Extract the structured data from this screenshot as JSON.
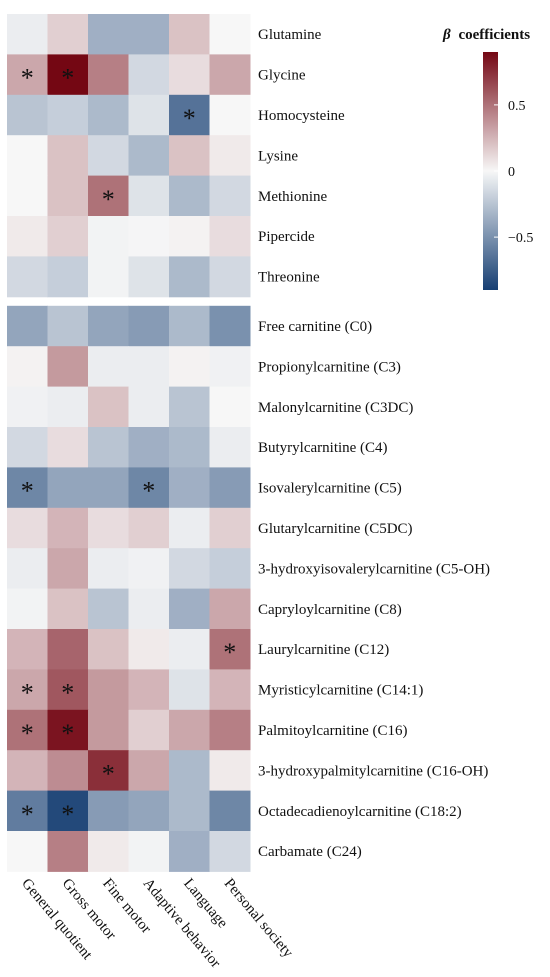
{
  "chart_data": {
    "type": "heatmap",
    "columns": [
      "General quotient",
      "Gross motor",
      "Fine motor",
      "Adaptive behavior",
      "Language",
      "Personal society"
    ],
    "rows": [
      "Glutamine",
      "Glycine",
      "Homocysteine",
      "Lysine",
      "Methionine",
      "Pipercide",
      "Threonine",
      "Free carnitine (C0)",
      "Propionylcarnitine (C3)",
      "Malonylcarnitine (C3DC)",
      "Butyrylcarnitine (C4)",
      "Isovalerylcarnitine (C5)",
      "Glutarylcarnitine (C5DC)",
      "3-hydroxyisovalerylcarnitine (C5-OH)",
      "Capryloylcarnitine (C8)",
      "Laurylcarnitine (C12)",
      "Myristicylcarnitine (C14:1)",
      "Palmitoylcarnitine (C16)",
      "3-hydroxypalmitylcarnitine (C16-OH)",
      "Octadecadienoylcarnitine (C18:2)",
      "Carbamate (C24)"
    ],
    "group_sizes": [
      7,
      14
    ],
    "values": [
      [
        -0.05,
        0.15,
        -0.35,
        -0.35,
        0.2,
        0.0
      ],
      [
        0.3,
        0.9,
        0.45,
        -0.15,
        0.1,
        0.3
      ],
      [
        -0.25,
        -0.2,
        -0.3,
        -0.1,
        -0.65,
        0.0
      ],
      [
        0.0,
        0.2,
        -0.15,
        -0.3,
        0.2,
        0.05
      ],
      [
        0.0,
        0.2,
        0.5,
        -0.1,
        -0.3,
        -0.15
      ],
      [
        0.05,
        0.15,
        -0.02,
        -0.01,
        0.02,
        0.1
      ],
      [
        -0.15,
        -0.2,
        -0.02,
        -0.1,
        -0.3,
        -0.15
      ],
      [
        -0.4,
        -0.25,
        -0.4,
        -0.45,
        -0.3,
        -0.5
      ],
      [
        0.02,
        0.35,
        -0.05,
        -0.05,
        0.02,
        -0.03
      ],
      [
        -0.03,
        -0.05,
        0.2,
        -0.05,
        -0.25,
        0.0
      ],
      [
        -0.15,
        0.1,
        -0.25,
        -0.35,
        -0.3,
        -0.05
      ],
      [
        -0.55,
        -0.4,
        -0.4,
        -0.55,
        -0.35,
        -0.45
      ],
      [
        0.1,
        0.25,
        0.1,
        0.15,
        -0.05,
        0.15
      ],
      [
        -0.05,
        0.3,
        -0.05,
        -0.03,
        -0.15,
        -0.2
      ],
      [
        -0.02,
        0.2,
        -0.25,
        -0.05,
        -0.35,
        0.3
      ],
      [
        0.25,
        0.55,
        0.2,
        0.05,
        -0.05,
        0.5
      ],
      [
        0.3,
        0.6,
        0.35,
        0.25,
        -0.1,
        0.25
      ],
      [
        0.5,
        0.85,
        0.35,
        0.15,
        0.3,
        0.45
      ],
      [
        0.25,
        0.4,
        0.75,
        0.3,
        -0.3,
        0.05
      ],
      [
        -0.6,
        -0.85,
        -0.45,
        -0.4,
        -0.3,
        -0.55
      ],
      [
        0.0,
        0.45,
        0.05,
        -0.02,
        -0.35,
        -0.15
      ]
    ],
    "significant": [
      [
        1,
        0
      ],
      [
        1,
        1
      ],
      [
        2,
        4
      ],
      [
        4,
        2
      ],
      [
        11,
        0
      ],
      [
        11,
        3
      ],
      [
        15,
        5
      ],
      [
        16,
        0
      ],
      [
        16,
        1
      ],
      [
        17,
        0
      ],
      [
        17,
        1
      ],
      [
        18,
        2
      ],
      [
        19,
        0
      ],
      [
        19,
        1
      ]
    ],
    "marker": "*",
    "legend": {
      "title_symbol": "β",
      "title": "coefficients",
      "ticks": [
        0.5,
        0,
        -0.5
      ],
      "tick_labels": [
        "0.5",
        "0",
        "−0.5"
      ],
      "range": [
        -0.9,
        0.9
      ],
      "position": "top-right"
    },
    "colors": {
      "low": "#163f73",
      "mid": "#f7f7f7",
      "high": "#740713"
    }
  }
}
